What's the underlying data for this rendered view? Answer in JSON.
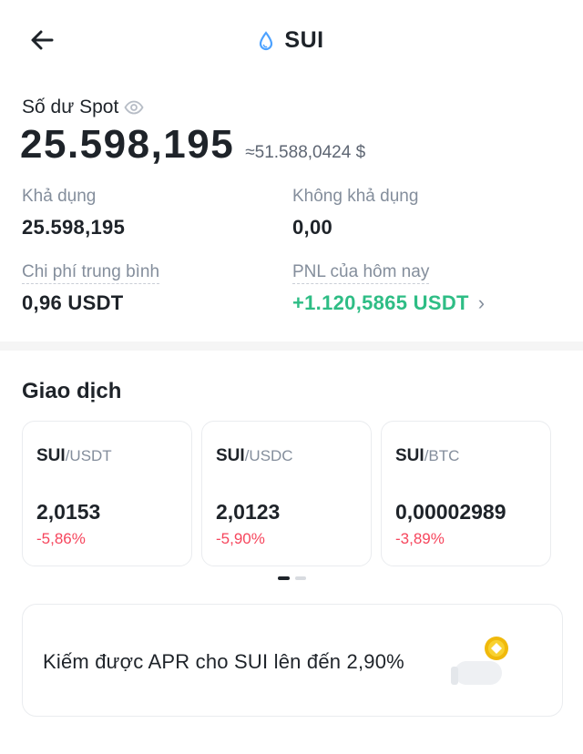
{
  "header": {
    "title": "SUI",
    "back_icon": "arrow-left-icon",
    "coin_icon": "sui-drop-icon",
    "coin_color": "#4da2ff"
  },
  "balance": {
    "label": "Số dư Spot",
    "visibility_icon": "eye-icon",
    "value": "25.598,195",
    "approx_usd": "≈51.588,0424 $"
  },
  "stats": {
    "available_label": "Khả dụng",
    "available_value": "25.598,195",
    "unavailable_label": "Không khả dụng",
    "unavailable_value": "0,00",
    "avg_cost_label": "Chi phí trung bình",
    "avg_cost_value": "0,96 USDT",
    "pnl_label": "PNL của hôm nay",
    "pnl_value": "+1.120,5865 USDT",
    "pnl_color": "#2ebd85"
  },
  "trading": {
    "title": "Giao dịch",
    "pairs": [
      {
        "base": "SUI",
        "quote": "/USDT",
        "price": "2,0153",
        "change": "-5,86%"
      },
      {
        "base": "SUI",
        "quote": "/USDC",
        "price": "2,0123",
        "change": "-5,90%"
      },
      {
        "base": "SUI",
        "quote": "/BTC",
        "price": "0,00002989",
        "change": "-3,89%"
      }
    ],
    "negative_color": "#f6465d"
  },
  "promo": {
    "text": "Kiếm được APR cho SUI lên đến 2,90%",
    "illustration_icon": "coin-earn-icon",
    "accent_color": "#f0b90b"
  }
}
